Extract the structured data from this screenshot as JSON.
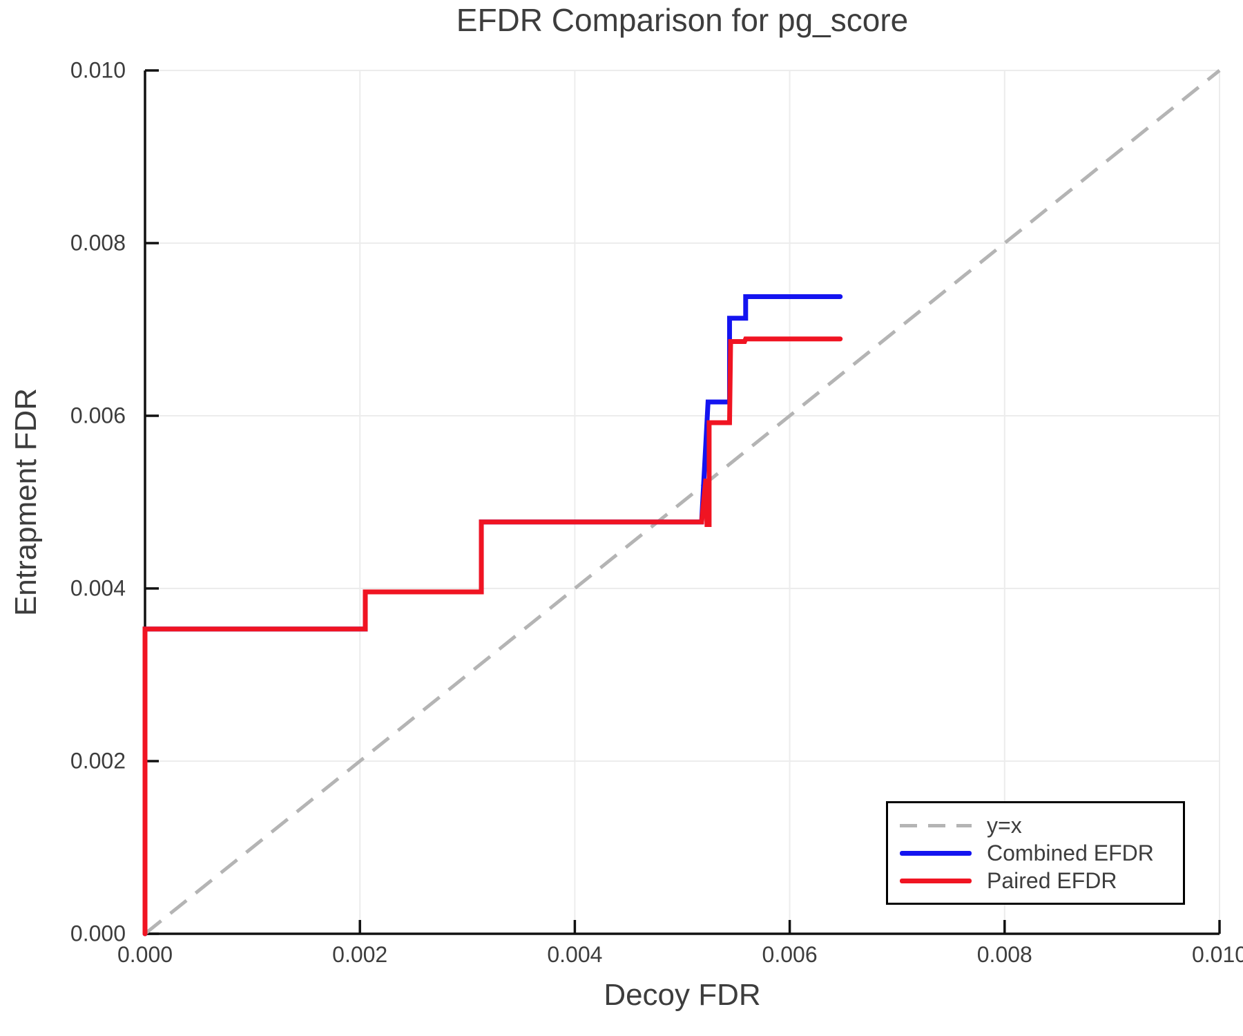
{
  "chart_data": {
    "type": "line",
    "title": "EFDR Comparison for pg_score",
    "xlabel": "Decoy FDR",
    "ylabel": "Entrapment FDR",
    "xlim": [
      0.0,
      0.01
    ],
    "ylim": [
      0.0,
      0.01
    ],
    "xtick_values": [
      0.0,
      0.002,
      0.004,
      0.006,
      0.008,
      0.01
    ],
    "xtick_labels": [
      "0.000",
      "0.002",
      "0.004",
      "0.006",
      "0.008",
      "0.010"
    ],
    "ytick_values": [
      0.0,
      0.002,
      0.004,
      0.006,
      0.008,
      0.01
    ],
    "ytick_labels": [
      "0.000",
      "0.002",
      "0.004",
      "0.006",
      "0.008",
      "0.010"
    ],
    "grid": true,
    "grid_color": "#ececec",
    "axis_color": "#111111",
    "text_color": "#3d3d3d",
    "legend_position": "bottom-right",
    "series": [
      {
        "name": "y=x",
        "style": "dashed",
        "color": "#b4b4b4",
        "width": 5,
        "points": [
          [
            0.0,
            0.0
          ],
          [
            0.01,
            0.01
          ]
        ]
      },
      {
        "name": "Combined EFDR",
        "style": "solid",
        "color": "#1414f0",
        "width": 7,
        "points": [
          [
            0.0,
            0.0
          ],
          [
            0.0,
            0.00353
          ],
          [
            0.00205,
            0.00353
          ],
          [
            0.00205,
            0.00396
          ],
          [
            0.00313,
            0.00396
          ],
          [
            0.00313,
            0.00477
          ],
          [
            0.00518,
            0.00477
          ],
          [
            0.00524,
            0.00616
          ],
          [
            0.00544,
            0.00616
          ],
          [
            0.00544,
            0.00713
          ],
          [
            0.00559,
            0.00713
          ],
          [
            0.00559,
            0.00738
          ],
          [
            0.00647,
            0.00738
          ]
        ]
      },
      {
        "name": "Paired EFDR",
        "style": "solid",
        "color": "#f01422",
        "width": 7,
        "points": [
          [
            0.0,
            0.0
          ],
          [
            0.0,
            0.00353
          ],
          [
            0.00205,
            0.00353
          ],
          [
            0.00205,
            0.00396
          ],
          [
            0.00313,
            0.00396
          ],
          [
            0.00313,
            0.00477
          ],
          [
            0.00518,
            0.00477
          ],
          [
            0.00522,
            0.00527
          ],
          [
            0.00523,
            0.00474
          ],
          [
            0.00525,
            0.00474
          ],
          [
            0.00525,
            0.00592
          ],
          [
            0.00544,
            0.00592
          ],
          [
            0.00545,
            0.00686
          ],
          [
            0.00558,
            0.00686
          ],
          [
            0.00559,
            0.00689
          ],
          [
            0.00647,
            0.00689
          ]
        ]
      }
    ]
  }
}
